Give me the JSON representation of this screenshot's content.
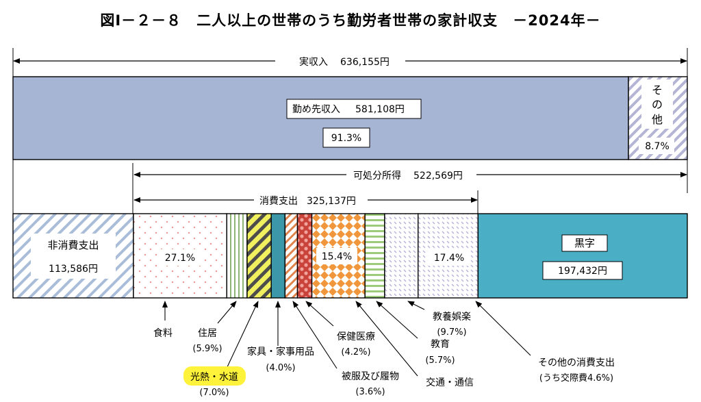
{
  "chart_data": {
    "type": "stacked-bar",
    "title": "図Ⅰ－２－８　二人以上の世帯のうち勤労者世帯の家計収支　－2024年－",
    "income": {
      "label": "実収入",
      "value_text": "636,155円",
      "segments": [
        {
          "label": "勤め先収入",
          "value_text": "581,108円",
          "percent_text": "91.3%",
          "value": 91.3
        },
        {
          "label": "その他",
          "percent_text": "8.7%",
          "value": 8.7
        }
      ]
    },
    "disposable_income": {
      "label": "可処分所得",
      "value_text": "522,569円"
    },
    "consumption": {
      "label": "消費支出",
      "value_text": "325,137円"
    },
    "expenditure": {
      "segments": [
        {
          "key": "hishohi",
          "label": "非消費支出",
          "value_text": "113,586円",
          "value": 113586
        },
        {
          "key": "shokuryo",
          "label": "食料",
          "percent_text": "27.1%",
          "value": 27.1
        },
        {
          "key": "jukyo",
          "label": "住居",
          "percent_text": "(5.9%)",
          "value": 5.9
        },
        {
          "key": "kounetsu",
          "label": "光熱・水道",
          "percent_text": "(7.0%)",
          "value": 7.0
        },
        {
          "key": "kagu",
          "label": "家具・家事用品",
          "percent_text": "(4.0%)",
          "value": 4.0
        },
        {
          "key": "hifuku",
          "label": "被服及び履物",
          "percent_text": "(3.6%)",
          "value": 3.6
        },
        {
          "key": "hoken",
          "label": "保健医療",
          "percent_text": "(4.2%)",
          "value": 4.2
        },
        {
          "key": "kotsu",
          "label": "交通・通信",
          "percent_text": "15.4%",
          "value": 15.4
        },
        {
          "key": "kyoiku",
          "label": "教育",
          "percent_text": "(5.7%)",
          "value": 5.7
        },
        {
          "key": "goraku",
          "label": "教養娯楽",
          "percent_text": "(9.7%)",
          "value": 9.7
        },
        {
          "key": "sonota",
          "label": "その他の消費支出",
          "percent_text": "(うち交際費4.6%)",
          "value_text": "17.4%",
          "value": 17.4
        },
        {
          "key": "kuroji",
          "label": "黒字",
          "value_text": "197,432円",
          "value": 197432
        }
      ]
    },
    "colors": {
      "income_main": "#a7b5d4",
      "income_other_stripe": "#b4b4d4",
      "hishohi_stripe": "#a9bdd9",
      "shokuryo_dot": "#e29a92",
      "jukyo_stripe": "#8eb372",
      "kounetsu_stripe": "#4d4d4d",
      "kounetsu_fill": "#f1f05e",
      "kagu": "#3c98a8",
      "hifuku_stripe": "#e0834a",
      "hoken": "#d14f46",
      "kotsu": "#f0963c",
      "kyoiku": "#9ccc7a",
      "goraku": "#b8b0d8",
      "kuroji": "#4aaec4",
      "highlight": "#fff23a"
    }
  }
}
